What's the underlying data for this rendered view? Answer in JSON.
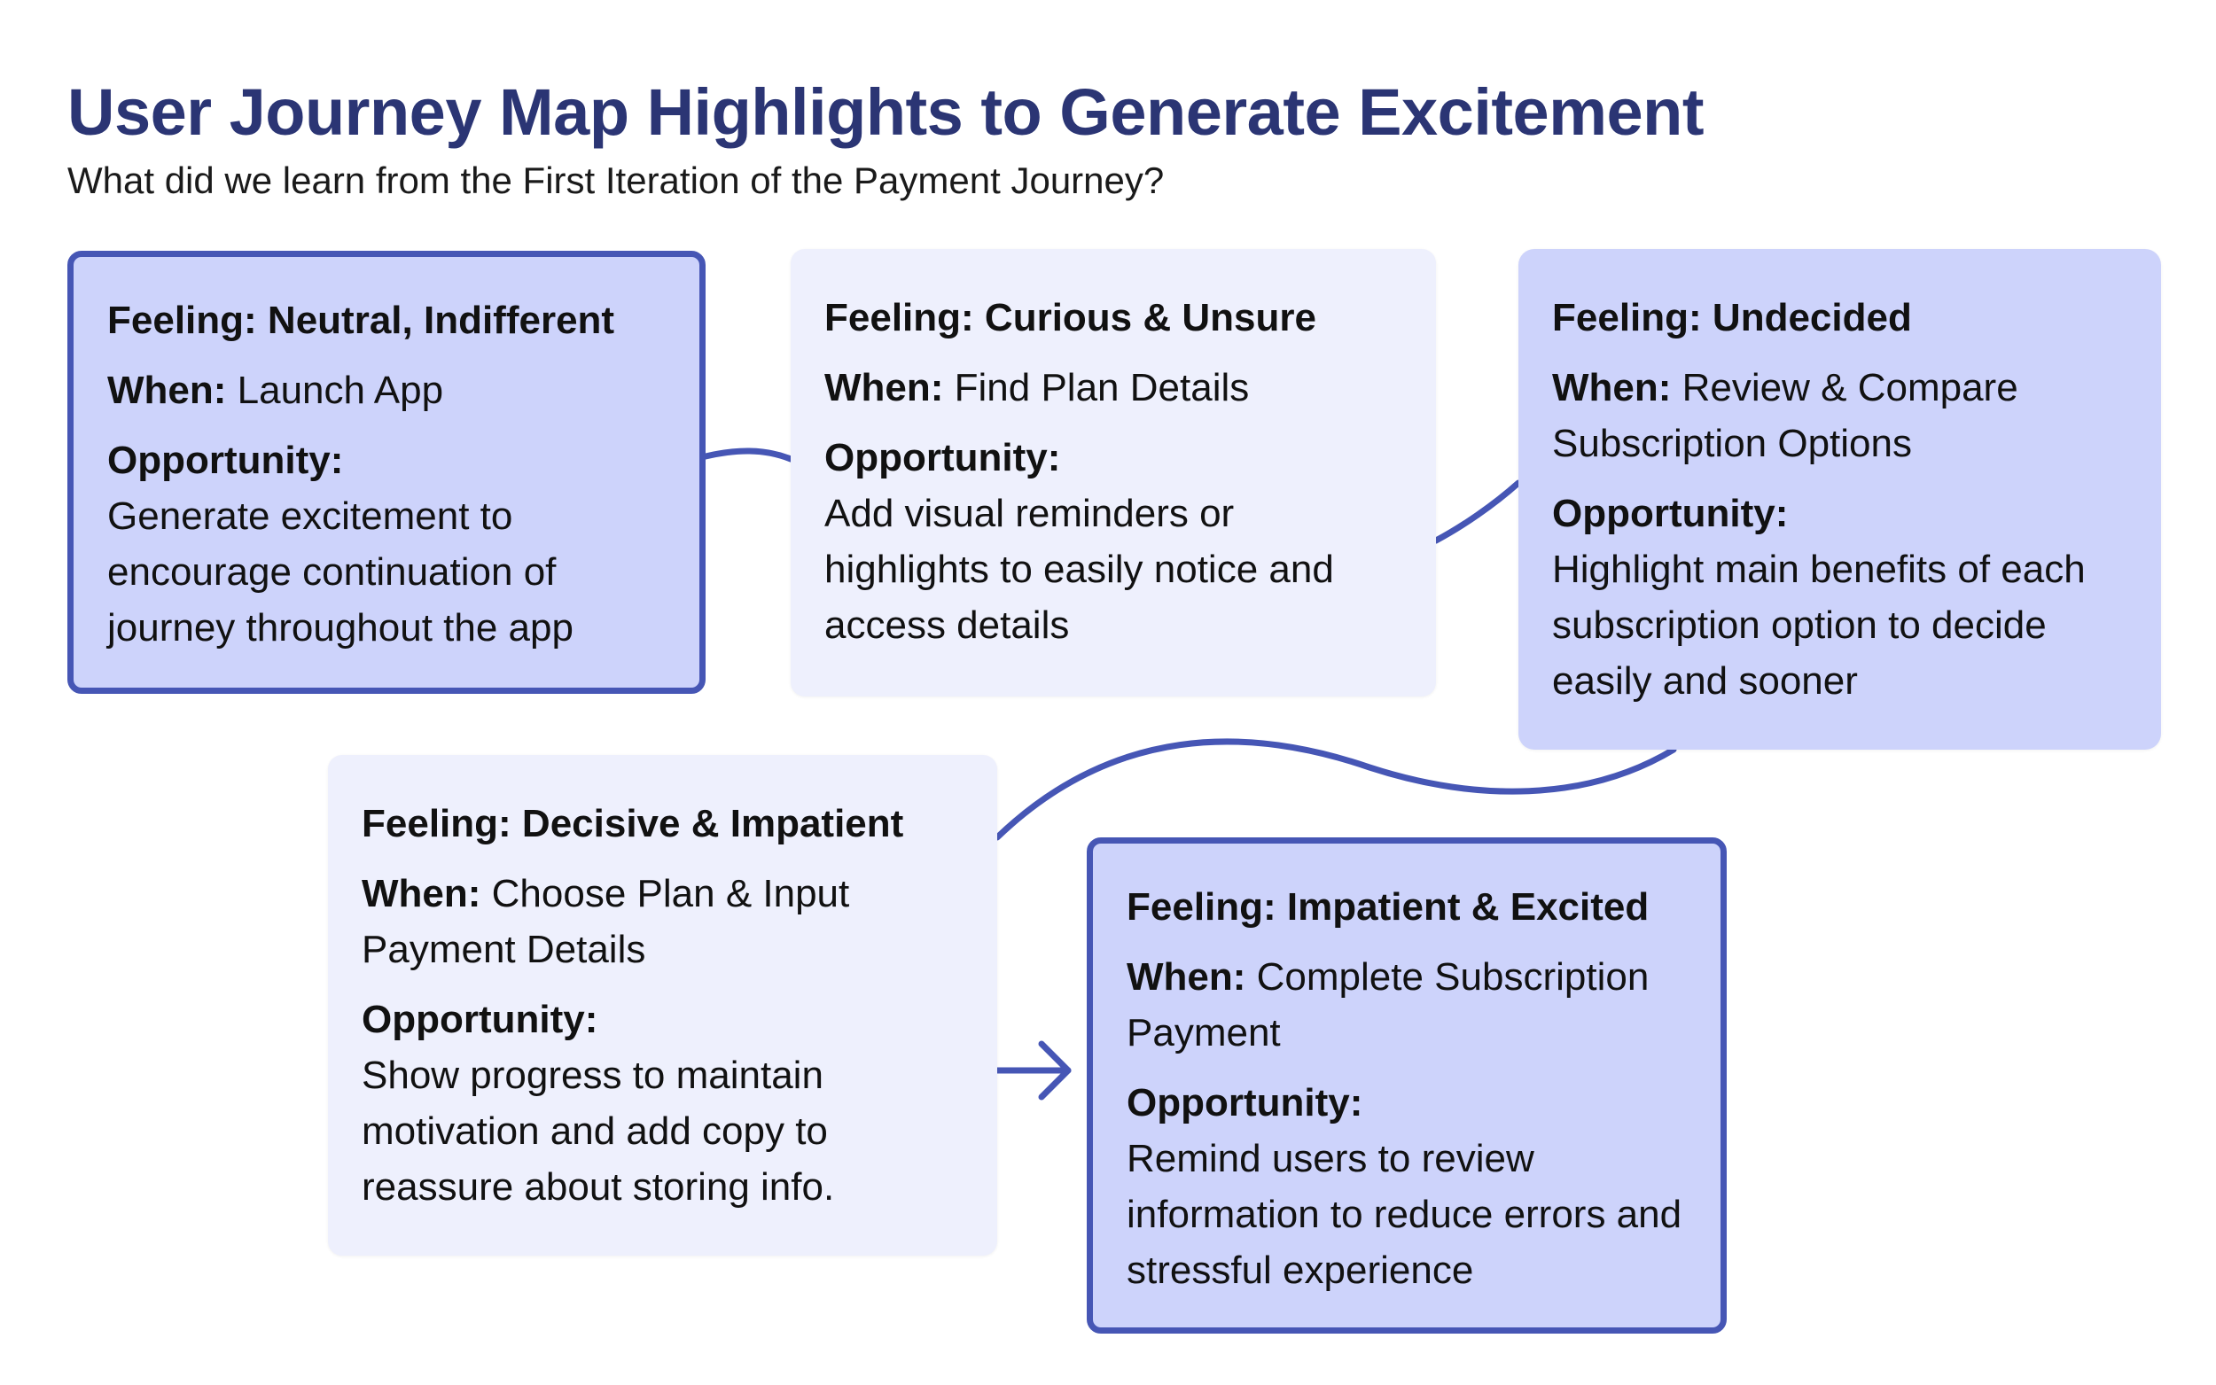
{
  "title": "User Journey Map Highlights to Generate Excitement",
  "subtitle": "What did we learn from the First Iteration of the Payment Journey?",
  "colors": {
    "title": "#2b3574",
    "accent_stroke": "#4656b5",
    "light_card": "#eef0fd",
    "blue_card": "#cdd3fb"
  },
  "stages": [
    {
      "feeling_label": "Feeling:",
      "feeling": "Neutral, Indifferent",
      "when_label": "When:",
      "when": "Launch App",
      "opportunity_label": "Opportunity:",
      "opportunity": "Generate excitement to encourage continuation of journey throughout the app"
    },
    {
      "feeling_label": "Feeling:",
      "feeling": "Curious & Unsure",
      "when_label": "When:",
      "when": "Find Plan Details",
      "opportunity_label": "Opportunity:",
      "opportunity": "Add visual reminders or highlights to easily notice and access details"
    },
    {
      "feeling_label": "Feeling:",
      "feeling": "Undecided",
      "when_label": "When:",
      "when": "Review & Compare Subscription Options",
      "opportunity_label": "Opportunity:",
      "opportunity": "Highlight main benefits of each subscription option to decide easily and sooner"
    },
    {
      "feeling_label": "Feeling:",
      "feeling": "Decisive & Impatient",
      "when_label": "When:",
      "when": "Choose Plan & Input Payment Details",
      "opportunity_label": "Opportunity:",
      "opportunity": "Show progress to maintain motivation and add copy to reassure about storing info."
    },
    {
      "feeling_label": "Feeling:",
      "feeling": "Impatient & Excited",
      "when_label": "When:",
      "when": "Complete Subscription Payment",
      "opportunity_label": "Opportunity:",
      "opportunity": "Remind users to review information to reduce errors and stressful experience"
    }
  ]
}
